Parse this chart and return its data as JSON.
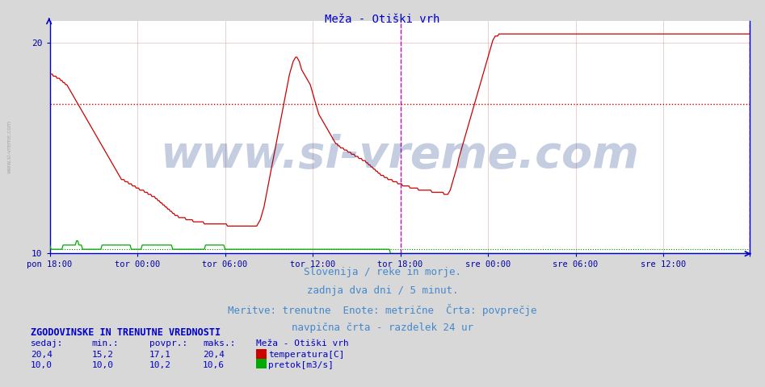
{
  "title": "Meža - Otiški vrh",
  "title_color": "#0000cc",
  "bg_color": "#d8d8d8",
  "plot_bg_color": "#ffffff",
  "grid_color": "#ddaaaa",
  "axis_color": "#0000cc",
  "tick_color": "#0000aa",
  "x_tick_positions": [
    0,
    72,
    144,
    216,
    288,
    360,
    432,
    504,
    575
  ],
  "x_tick_labels": [
    "pon 18:00",
    "tor 00:00",
    "tor 06:00",
    "tor 12:00",
    "tor 18:00",
    "sre 00:00",
    "sre 06:00",
    "sre 12:00",
    ""
  ],
  "avg_temp": 17.1,
  "avg_line_color": "#cc0000",
  "avg_flow": 10.2,
  "avg_flow_color": "#008800",
  "vertical_line_x": 288,
  "vertical_line_color": "#cc00cc",
  "temp_color": "#cc0000",
  "flow_color": "#00aa00",
  "footer_lines": [
    "Slovenija / reke in morje.",
    "zadnja dva dni / 5 minut.",
    "Meritve: trenutne  Enote: metrične  Črta: povprečje",
    "navpična črta - razdelek 24 ur"
  ],
  "footer_color": "#4488cc",
  "footer_fontsize": 9,
  "watermark": "www.si-vreme.com",
  "watermark_color": "#1a3a8a",
  "watermark_alpha": 0.25,
  "watermark_fontsize": 40,
  "title_fontsize": 10,
  "stats_color": "#0000cc",
  "stats_fontsize": 8,
  "ylim": [
    10,
    21
  ],
  "n_points": 576,
  "temp_data": [
    18.5,
    18.5,
    18.5,
    18.4,
    18.4,
    18.4,
    18.3,
    18.3,
    18.3,
    18.2,
    18.2,
    18.1,
    18.1,
    18.0,
    18.0,
    17.9,
    17.8,
    17.7,
    17.6,
    17.5,
    17.4,
    17.3,
    17.2,
    17.1,
    17.0,
    16.9,
    16.8,
    16.7,
    16.6,
    16.5,
    16.4,
    16.3,
    16.2,
    16.1,
    16.0,
    15.9,
    15.8,
    15.7,
    15.6,
    15.5,
    15.4,
    15.3,
    15.2,
    15.1,
    15.0,
    14.9,
    14.8,
    14.7,
    14.6,
    14.5,
    14.4,
    14.3,
    14.2,
    14.1,
    14.0,
    13.9,
    13.8,
    13.7,
    13.6,
    13.5,
    13.5,
    13.5,
    13.4,
    13.4,
    13.4,
    13.3,
    13.3,
    13.3,
    13.2,
    13.2,
    13.2,
    13.1,
    13.1,
    13.1,
    13.0,
    13.0,
    13.0,
    13.0,
    12.9,
    12.9,
    12.9,
    12.8,
    12.8,
    12.8,
    12.7,
    12.7,
    12.7,
    12.6,
    12.6,
    12.5,
    12.5,
    12.4,
    12.4,
    12.3,
    12.3,
    12.2,
    12.2,
    12.1,
    12.1,
    12.0,
    12.0,
    11.9,
    11.9,
    11.8,
    11.8,
    11.8,
    11.7,
    11.7,
    11.7,
    11.7,
    11.7,
    11.7,
    11.6,
    11.6,
    11.6,
    11.6,
    11.6,
    11.6,
    11.5,
    11.5,
    11.5,
    11.5,
    11.5,
    11.5,
    11.5,
    11.5,
    11.5,
    11.4,
    11.4,
    11.4,
    11.4,
    11.4,
    11.4,
    11.4,
    11.4,
    11.4,
    11.4,
    11.4,
    11.4,
    11.4,
    11.4,
    11.4,
    11.4,
    11.4,
    11.4,
    11.4,
    11.3,
    11.3,
    11.3,
    11.3,
    11.3,
    11.3,
    11.3,
    11.3,
    11.3,
    11.3,
    11.3,
    11.3,
    11.3,
    11.3,
    11.3,
    11.3,
    11.3,
    11.3,
    11.3,
    11.3,
    11.3,
    11.3,
    11.3,
    11.3,
    11.3,
    11.4,
    11.5,
    11.6,
    11.8,
    12.0,
    12.2,
    12.5,
    12.8,
    13.1,
    13.4,
    13.7,
    14.0,
    14.3,
    14.6,
    14.9,
    15.2,
    15.5,
    15.8,
    16.1,
    16.4,
    16.7,
    17.0,
    17.3,
    17.6,
    17.9,
    18.2,
    18.5,
    18.7,
    18.9,
    19.1,
    19.2,
    19.3,
    19.3,
    19.2,
    19.1,
    18.9,
    18.7,
    18.6,
    18.5,
    18.4,
    18.3,
    18.2,
    18.1,
    18.0,
    17.8,
    17.6,
    17.4,
    17.2,
    17.0,
    16.8,
    16.6,
    16.5,
    16.4,
    16.3,
    16.2,
    16.1,
    16.0,
    15.9,
    15.8,
    15.7,
    15.6,
    15.5,
    15.4,
    15.3,
    15.2,
    15.2,
    15.1,
    15.1,
    15.0,
    15.0,
    15.0,
    14.9,
    14.9,
    14.9,
    14.8,
    14.8,
    14.8,
    14.7,
    14.7,
    14.7,
    14.6,
    14.6,
    14.6,
    14.5,
    14.5,
    14.5,
    14.4,
    14.4,
    14.4,
    14.3,
    14.3,
    14.2,
    14.2,
    14.1,
    14.1,
    14.0,
    14.0,
    13.9,
    13.9,
    13.8,
    13.8,
    13.7,
    13.7,
    13.7,
    13.6,
    13.6,
    13.6,
    13.5,
    13.5,
    13.5,
    13.5,
    13.4,
    13.4,
    13.4,
    13.4,
    13.3,
    13.3,
    13.3,
    13.3,
    13.2,
    13.2,
    13.2,
    13.2,
    13.2,
    13.2,
    13.1,
    13.1,
    13.1,
    13.1,
    13.1,
    13.1,
    13.1,
    13.0,
    13.0,
    13.0,
    13.0,
    13.0,
    13.0,
    13.0,
    13.0,
    13.0,
    13.0,
    13.0,
    12.9,
    12.9,
    12.9,
    12.9,
    12.9,
    12.9,
    12.9,
    12.9,
    12.9,
    12.9,
    12.8,
    12.8,
    12.8,
    12.8,
    12.9,
    13.0,
    13.2,
    13.4,
    13.6,
    13.8,
    14.0,
    14.2,
    14.5,
    14.7,
    14.9,
    15.1,
    15.3,
    15.5,
    15.7,
    15.9,
    16.1,
    16.3,
    16.5,
    16.7,
    16.9,
    17.1,
    17.3,
    17.5,
    17.7,
    17.9,
    18.1,
    18.3,
    18.5,
    18.7,
    18.9,
    19.1,
    19.3,
    19.5,
    19.7,
    19.9,
    20.1,
    20.2,
    20.3,
    20.3,
    20.3,
    20.4,
    20.4,
    20.4,
    20.4,
    20.4,
    20.4,
    20.4,
    20.4,
    20.4,
    20.4,
    20.4,
    20.4,
    20.4,
    20.4,
    20.4,
    20.4,
    20.4,
    20.4,
    20.4,
    20.4,
    20.4,
    20.4,
    20.4,
    20.4,
    20.4,
    20.4,
    20.4,
    20.4,
    20.4,
    20.4,
    20.4,
    20.4,
    20.4,
    20.4,
    20.4,
    20.4,
    20.4,
    20.4,
    20.4,
    20.4,
    20.4,
    20.4,
    20.4,
    20.4,
    20.4,
    20.4,
    20.4,
    20.4,
    20.4,
    20.4,
    20.4,
    20.4,
    20.4,
    20.4,
    20.4,
    20.4,
    20.4,
    20.4,
    20.4,
    20.4,
    20.4,
    20.4,
    20.4,
    20.4,
    20.4,
    20.4,
    20.4,
    20.4,
    20.4,
    20.4,
    20.4,
    20.4,
    20.4,
    20.4,
    20.4,
    20.4,
    20.4,
    20.4,
    20.4,
    20.4,
    20.4,
    20.4,
    20.4,
    20.4,
    20.4,
    20.4,
    20.4,
    20.4,
    20.4,
    20.4,
    20.4,
    20.4,
    20.4,
    20.4,
    20.4,
    20.4,
    20.4,
    20.4,
    20.4,
    20.4,
    20.4,
    20.4,
    20.4,
    20.4,
    20.4,
    20.4,
    20.4,
    20.4,
    20.4,
    20.4,
    20.4,
    20.4,
    20.4,
    20.4,
    20.4,
    20.4,
    20.4,
    20.4,
    20.4,
    20.4,
    20.4,
    20.4,
    20.4,
    20.4,
    20.4,
    20.4,
    20.4,
    20.4,
    20.4,
    20.4,
    20.4,
    20.4,
    20.4,
    20.4,
    20.4,
    20.4,
    20.4,
    20.4,
    20.4,
    20.4,
    20.4,
    20.4,
    20.4,
    20.4,
    20.4,
    20.4,
    20.4,
    20.4,
    20.4,
    20.4,
    20.4,
    20.4,
    20.4,
    20.4,
    20.4,
    20.4,
    20.4,
    20.4,
    20.4,
    20.4,
    20.4,
    20.4,
    20.4,
    20.4,
    20.4,
    20.4,
    20.4,
    20.4,
    20.4,
    20.4,
    20.4,
    20.4,
    20.4,
    20.4,
    20.4,
    20.4,
    20.4,
    20.4,
    20.4,
    20.4,
    20.4,
    20.4,
    20.4,
    20.4,
    20.4,
    20.4,
    20.4,
    20.4,
    20.4,
    20.4,
    20.4,
    20.4,
    20.4,
    20.4,
    20.4,
    20.4,
    20.4,
    20.4,
    20.4,
    20.4,
    20.4,
    20.4,
    20.4,
    20.4,
    20.4,
    20.4,
    20.4
  ],
  "flow_data": [
    10.4,
    10.2,
    10.2,
    10.2,
    10.2,
    10.2,
    10.2,
    10.2,
    10.2,
    10.2,
    10.2,
    10.4,
    10.4,
    10.4,
    10.4,
    10.4,
    10.4,
    10.4,
    10.4,
    10.4,
    10.4,
    10.4,
    10.6,
    10.6,
    10.4,
    10.4,
    10.4,
    10.2,
    10.2,
    10.2,
    10.2,
    10.2,
    10.2,
    10.2,
    10.2,
    10.2,
    10.2,
    10.2,
    10.2,
    10.2,
    10.2,
    10.2,
    10.2,
    10.4,
    10.4,
    10.4,
    10.4,
    10.4,
    10.4,
    10.4,
    10.4,
    10.4,
    10.4,
    10.4,
    10.4,
    10.4,
    10.4,
    10.4,
    10.4,
    10.4,
    10.4,
    10.4,
    10.4,
    10.4,
    10.4,
    10.4,
    10.4,
    10.2,
    10.2,
    10.2,
    10.2,
    10.2,
    10.2,
    10.2,
    10.2,
    10.2,
    10.4,
    10.4,
    10.4,
    10.4,
    10.4,
    10.4,
    10.4,
    10.4,
    10.4,
    10.4,
    10.4,
    10.4,
    10.4,
    10.4,
    10.4,
    10.4,
    10.4,
    10.4,
    10.4,
    10.4,
    10.4,
    10.4,
    10.4,
    10.4,
    10.4,
    10.2,
    10.2,
    10.2,
    10.2,
    10.2,
    10.2,
    10.2,
    10.2,
    10.2,
    10.2,
    10.2,
    10.2,
    10.2,
    10.2,
    10.2,
    10.2,
    10.2,
    10.2,
    10.2,
    10.2,
    10.2,
    10.2,
    10.2,
    10.2,
    10.2,
    10.2,
    10.2,
    10.4,
    10.4,
    10.4,
    10.4,
    10.4,
    10.4,
    10.4,
    10.4,
    10.4,
    10.4,
    10.4,
    10.4,
    10.4,
    10.4,
    10.4,
    10.4,
    10.2,
    10.2,
    10.2,
    10.2,
    10.2,
    10.2,
    10.2,
    10.2,
    10.2,
    10.2,
    10.2,
    10.2,
    10.2,
    10.2,
    10.2,
    10.2,
    10.2,
    10.2,
    10.2,
    10.2,
    10.2,
    10.2,
    10.2,
    10.2,
    10.2,
    10.2,
    10.2,
    10.2,
    10.2,
    10.2,
    10.2,
    10.2,
    10.2,
    10.2,
    10.2,
    10.2,
    10.2,
    10.2,
    10.2,
    10.2,
    10.2,
    10.2,
    10.2,
    10.2,
    10.2,
    10.2,
    10.2,
    10.2,
    10.2,
    10.2,
    10.2,
    10.2,
    10.2,
    10.2,
    10.2,
    10.2,
    10.2,
    10.2,
    10.2,
    10.2,
    10.2,
    10.2,
    10.2,
    10.2,
    10.2,
    10.2,
    10.2,
    10.2,
    10.2,
    10.2,
    10.2,
    10.2,
    10.2,
    10.2,
    10.2,
    10.2,
    10.2,
    10.2,
    10.2,
    10.2,
    10.2,
    10.2,
    10.2,
    10.2,
    10.2,
    10.2,
    10.2,
    10.2,
    10.2,
    10.2,
    10.2,
    10.2,
    10.2,
    10.2,
    10.2,
    10.2,
    10.2,
    10.2,
    10.2,
    10.2,
    10.2,
    10.2,
    10.2,
    10.2,
    10.2,
    10.2,
    10.2,
    10.2,
    10.2,
    10.2,
    10.2,
    10.2,
    10.2,
    10.2,
    10.2,
    10.2,
    10.2,
    10.2,
    10.2,
    10.2,
    10.2,
    10.2,
    10.2,
    10.2,
    10.2,
    10.2,
    10.2,
    10.2,
    10.2,
    10.2,
    10.2,
    10.2,
    10.2,
    10.2,
    10.2,
    10.2,
    10.0,
    10.0,
    10.0,
    10.0,
    10.0,
    10.0,
    10.0,
    10.0,
    10.0,
    10.0,
    10.0,
    10.0,
    10.0,
    10.0,
    10.0,
    10.0,
    10.0,
    10.0,
    10.0,
    10.0,
    10.0,
    10.0,
    10.0,
    10.0,
    10.0,
    10.0,
    10.0,
    10.0,
    10.0,
    10.0,
    10.0,
    10.0,
    10.0,
    10.0,
    10.0,
    10.0,
    10.0,
    10.0,
    10.0,
    10.0,
    10.0,
    10.0,
    10.0,
    10.0,
    10.0,
    10.0,
    10.0,
    10.0,
    10.0,
    10.0,
    10.0,
    10.0,
    10.0,
    10.0,
    10.0,
    10.0,
    10.0,
    10.0,
    10.0,
    10.0,
    10.0,
    10.0,
    10.0,
    10.0,
    10.0,
    10.0,
    10.0,
    10.0,
    10.0,
    10.0,
    10.0,
    10.0,
    10.0,
    10.0,
    10.0,
    10.0,
    10.0,
    10.0,
    10.0,
    10.0,
    10.0,
    10.0,
    10.0,
    10.0,
    10.0,
    10.0,
    10.0,
    10.0,
    10.0,
    10.0,
    10.0,
    10.0,
    10.0,
    10.0,
    10.0,
    10.0,
    10.0,
    10.0,
    10.0,
    10.0,
    10.0,
    10.0,
    10.0,
    10.0,
    10.0,
    10.0,
    10.0,
    10.0,
    10.0,
    10.0,
    10.0,
    10.0,
    10.0,
    10.0,
    10.0,
    10.0,
    10.0,
    10.0,
    10.0,
    10.0,
    10.0,
    10.0,
    10.0,
    10.0,
    10.0,
    10.0,
    10.0,
    10.0,
    10.0,
    10.0,
    10.0,
    10.0,
    10.0,
    10.0,
    10.0,
    10.0,
    10.0,
    10.0,
    10.0,
    10.0,
    10.0,
    10.0,
    10.0,
    10.0,
    10.0,
    10.0,
    10.0,
    10.0,
    10.0,
    10.0,
    10.0,
    10.0,
    10.0,
    10.0,
    10.0,
    10.0,
    10.0,
    10.0,
    10.0,
    10.0,
    10.0,
    10.0,
    10.0,
    10.0,
    10.0,
    10.0,
    10.0,
    10.0,
    10.0,
    10.0,
    10.0,
    10.0,
    10.0,
    10.0,
    10.0,
    10.0,
    10.0,
    10.0,
    10.0,
    10.0,
    10.0,
    10.0,
    10.0,
    10.0,
    10.0,
    10.0,
    10.0,
    10.0,
    10.0,
    10.0,
    10.0,
    10.0,
    10.0,
    10.0,
    10.0,
    10.0,
    10.0,
    10.0,
    10.0,
    10.0,
    10.0,
    10.0,
    10.0,
    10.0,
    10.0,
    10.0,
    10.0,
    10.0,
    10.0,
    10.0,
    10.0,
    10.0,
    10.0,
    10.0,
    10.0,
    10.0,
    10.0,
    10.0,
    10.0,
    10.0,
    10.0,
    10.0,
    10.0,
    10.0,
    10.0,
    10.0,
    10.0,
    10.0,
    10.0,
    10.0,
    10.0,
    10.0,
    10.0,
    10.0,
    10.0,
    10.0,
    10.0,
    10.0,
    10.0,
    10.0,
    10.0,
    10.0,
    10.0,
    10.0,
    10.0,
    10.0,
    10.0,
    10.0,
    10.0,
    10.0,
    10.0,
    10.0,
    10.0,
    10.0,
    10.0,
    10.0,
    10.0,
    10.0,
    10.0,
    10.0,
    10.0,
    10.0,
    10.0,
    10.0,
    10.0,
    10.0,
    10.0,
    10.0,
    10.0,
    10.0,
    10.0,
    10.0,
    10.0,
    10.0,
    10.0,
    10.0,
    10.0,
    10.0,
    10.0,
    10.0,
    10.0,
    10.0,
    10.0,
    10.0,
    10.0,
    10.0,
    10.0,
    10.0,
    10.0,
    10.0,
    10.0,
    10.0,
    10.0,
    10.0,
    10.0,
    10.0
  ]
}
